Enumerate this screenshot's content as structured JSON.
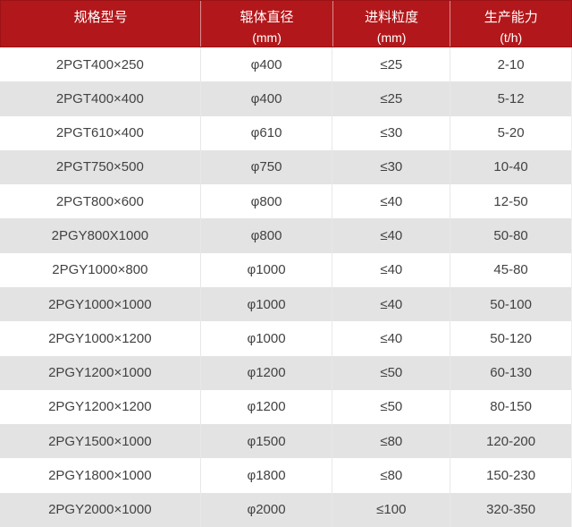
{
  "colors": {
    "header_bg": "#b2181b",
    "header_border": "#9b1215",
    "header_text": "#ffffff",
    "row_bg": "#ffffff",
    "row_alt_bg": "#e3e3e3",
    "body_text": "#424242",
    "cell_divider": "#e8e8e8"
  },
  "chart_data": {
    "type": "table",
    "legend_position": "none",
    "grid": true,
    "columns": [
      {
        "label": "规格型号",
        "unit": ""
      },
      {
        "label": "辊体直径",
        "unit": "(mm)"
      },
      {
        "label": "进料粒度",
        "unit": "(mm)"
      },
      {
        "label": "生产能力",
        "unit": "(t/h)"
      }
    ],
    "rows": [
      [
        "2PGT400×250",
        "φ400",
        "≤25",
        "2-10"
      ],
      [
        "2PGT400×400",
        "φ400",
        "≤25",
        "5-12"
      ],
      [
        "2PGT610×400",
        "φ610",
        "≤30",
        "5-20"
      ],
      [
        "2PGT750×500",
        "φ750",
        "≤30",
        "10-40"
      ],
      [
        "2PGT800×600",
        "φ800",
        "≤40",
        "12-50"
      ],
      [
        "2PGY800X1000",
        "φ800",
        "≤40",
        "50-80"
      ],
      [
        "2PGY1000×800",
        "φ1000",
        "≤40",
        "45-80"
      ],
      [
        "2PGY1000×1000",
        "φ1000",
        "≤40",
        "50-100"
      ],
      [
        "2PGY1000×1200",
        "φ1000",
        "≤40",
        "50-120"
      ],
      [
        "2PGY1200×1000",
        "φ1200",
        "≤50",
        "60-130"
      ],
      [
        "2PGY1200×1200",
        "φ1200",
        "≤50",
        "80-150"
      ],
      [
        "2PGY1500×1000",
        "φ1500",
        "≤80",
        "120-200"
      ],
      [
        "2PGY1800×1000",
        "φ1800",
        "≤80",
        "150-230"
      ],
      [
        "2PGY2000×1000",
        "φ2000",
        "≤100",
        "320-350"
      ]
    ]
  }
}
